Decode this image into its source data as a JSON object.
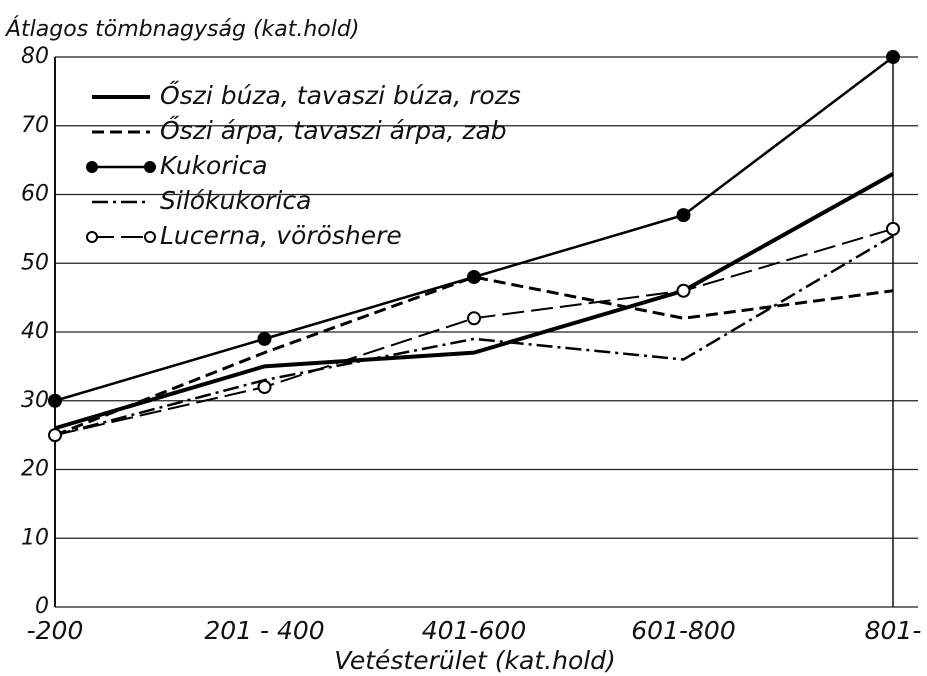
{
  "chart_data": {
    "type": "line",
    "title": "Átlagos tömbnagyság (kat.hold)",
    "x_label": "Vetésterület (kat.hold)",
    "categories": [
      "-200",
      "201 - 400",
      "401-600",
      "601-800",
      "801-"
    ],
    "series": [
      {
        "name": "Őszi búza, tavaszi búza, rozs",
        "color": "#000000",
        "dash": "solid",
        "width": 4,
        "values": [
          26,
          35,
          37,
          46,
          63
        ]
      },
      {
        "name": "Őszi árpa, tavaszi árpa, zab",
        "color": "#000000",
        "dash": "dashed",
        "width": 3,
        "values": [
          25,
          37,
          48,
          42,
          46
        ]
      },
      {
        "name": "Kukorica",
        "color": "#000000",
        "dash": "solid",
        "width": 2.5,
        "marker": "filled",
        "values": [
          30,
          39,
          48,
          57,
          80
        ]
      },
      {
        "name": "Silókukorica",
        "color": "#000000",
        "dash": "dashdot",
        "width": 2.5,
        "values": [
          25,
          33,
          39,
          36,
          54
        ]
      },
      {
        "name": "Lucerna, vöröshere",
        "color": "#000000",
        "dash": "longdash",
        "width": 2,
        "marker": "open",
        "values": [
          25,
          32,
          42,
          46,
          55
        ]
      }
    ],
    "ylim": [
      0,
      80
    ],
    "yticks": [
      0,
      10,
      20,
      30,
      40,
      50,
      60,
      70,
      80
    ],
    "grid": true
  }
}
